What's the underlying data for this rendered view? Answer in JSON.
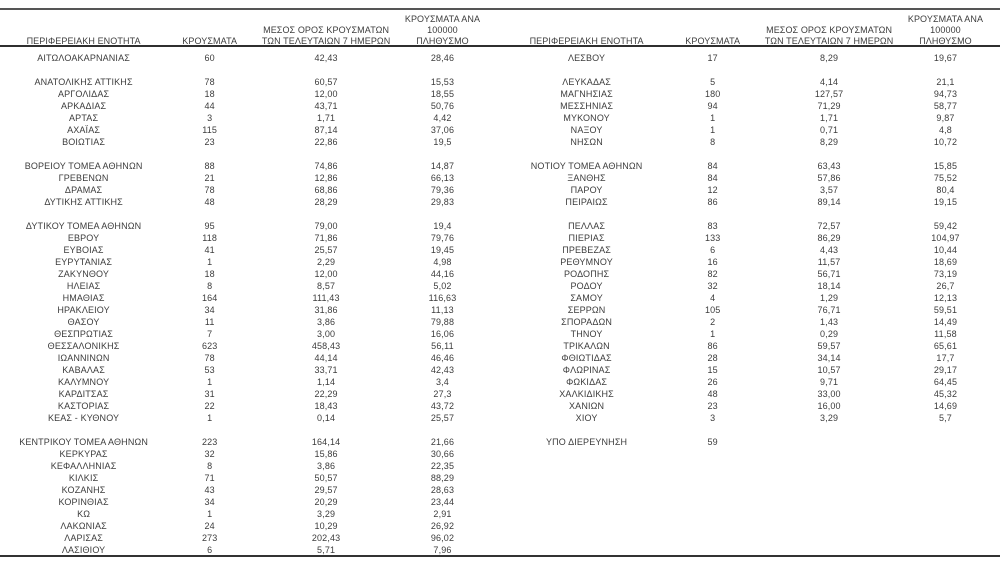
{
  "colors": {
    "text": "#3c3c3c",
    "rule": "#3a3a3a",
    "background": "#ffffff"
  },
  "tables": [
    {
      "headers": [
        "ΠΕΡΙΦΕΡΕΙΑΚΗ ΕΝΟΤΗΤΑ",
        "ΚΡΟΥΣΜΑΤΑ",
        "ΜΕΣΟΣ ΟΡΟΣ ΚΡΟΥΣΜΑΤΩΝ\nΤΩΝ ΤΕΛΕΥΤΑΙΩΝ 7 ΗΜΕΡΩΝ",
        "ΚΡΟΥΣΜΑΤΑ ΑΝΑ 100000\nΠΛΗΘΥΣΜΟ"
      ],
      "rows": [
        [
          "ΑΙΤΩΛΟΑΚΑΡΝΑΝΙΑΣ",
          "60",
          "42,43",
          "28,46"
        ],
        null,
        [
          "ΑΝΑΤΟΛΙΚΗΣ ΑΤΤΙΚΗΣ",
          "78",
          "60,57",
          "15,53"
        ],
        [
          "ΑΡΓΟΛΙΔΑΣ",
          "18",
          "12,00",
          "18,55"
        ],
        [
          "ΑΡΚΑΔΙΑΣ",
          "44",
          "43,71",
          "50,76"
        ],
        [
          "ΑΡΤΑΣ",
          "3",
          "1,71",
          "4,42"
        ],
        [
          "ΑΧΑΪΑΣ",
          "115",
          "87,14",
          "37,06"
        ],
        [
          "ΒΟΙΩΤΙΑΣ",
          "23",
          "22,86",
          "19,5"
        ],
        null,
        [
          "ΒΟΡΕΙΟΥ ΤΟΜΕΑ ΑΘΗΝΩΝ",
          "88",
          "74,86",
          "14,87"
        ],
        [
          "ΓΡΕΒΕΝΩΝ",
          "21",
          "12,86",
          "66,13"
        ],
        [
          "ΔΡΑΜΑΣ",
          "78",
          "68,86",
          "79,36"
        ],
        [
          "ΔΥΤΙΚΗΣ ΑΤΤΙΚΗΣ",
          "48",
          "28,29",
          "29,83"
        ],
        null,
        [
          "ΔΥΤΙΚΟΥ ΤΟΜΕΑ ΑΘΗΝΩΝ",
          "95",
          "79,00",
          "19,4"
        ],
        [
          "ΕΒΡΟΥ",
          "118",
          "71,86",
          "79,76"
        ],
        [
          "ΕΥΒΟΙΑΣ",
          "41",
          "25,57",
          "19,45"
        ],
        [
          "ΕΥΡΥΤΑΝΙΑΣ",
          "1",
          "2,29",
          "4,98"
        ],
        [
          "ΖΑΚΥΝΘΟΥ",
          "18",
          "12,00",
          "44,16"
        ],
        [
          "ΗΛΕΙΑΣ",
          "8",
          "8,57",
          "5,02"
        ],
        [
          "ΗΜΑΘΙΑΣ",
          "164",
          "111,43",
          "116,63"
        ],
        [
          "ΗΡΑΚΛΕΙΟΥ",
          "34",
          "31,86",
          "11,13"
        ],
        [
          "ΘΑΣΟΥ",
          "11",
          "3,86",
          "79,88"
        ],
        [
          "ΘΕΣΠΡΩΤΙΑΣ",
          "7",
          "3,00",
          "16,06"
        ],
        [
          "ΘΕΣΣΑΛΟΝΙΚΗΣ",
          "623",
          "458,43",
          "56,11"
        ],
        [
          "ΙΩΑΝΝΙΝΩΝ",
          "78",
          "44,14",
          "46,46"
        ],
        [
          "ΚΑΒΑΛΑΣ",
          "53",
          "33,71",
          "42,43"
        ],
        [
          "ΚΑΛΥΜΝΟΥ",
          "1",
          "1,14",
          "3,4"
        ],
        [
          "ΚΑΡΔΙΤΣΑΣ",
          "31",
          "22,29",
          "27,3"
        ],
        [
          "ΚΑΣΤΟΡΙΑΣ",
          "22",
          "18,43",
          "43,72"
        ],
        [
          "ΚΕΑΣ - ΚΥΘΝΟΥ",
          "1",
          "0,14",
          "25,57"
        ],
        null,
        [
          "ΚΕΝΤΡΙΚΟΥ ΤΟΜΕΑ ΑΘΗΝΩΝ",
          "223",
          "164,14",
          "21,66"
        ],
        [
          "ΚΕΡΚΥΡΑΣ",
          "32",
          "15,86",
          "30,66"
        ],
        [
          "ΚΕΦΑΛΛΗΝΙΑΣ",
          "8",
          "3,86",
          "22,35"
        ],
        [
          "ΚΙΛΚΙΣ",
          "71",
          "50,57",
          "88,29"
        ],
        [
          "ΚΟΖΑΝΗΣ",
          "43",
          "29,57",
          "28,63"
        ],
        [
          "ΚΟΡΙΝΘΙΑΣ",
          "34",
          "20,29",
          "23,44"
        ],
        [
          "ΚΩ",
          "1",
          "3,29",
          "2,91"
        ],
        [
          "ΛΑΚΩΝΙΑΣ",
          "24",
          "10,29",
          "26,92"
        ],
        [
          "ΛΑΡΙΣΑΣ",
          "273",
          "202,43",
          "96,02"
        ],
        [
          "ΛΑΣΙΘΙΟΥ",
          "6",
          "5,71",
          "7,96"
        ]
      ]
    },
    {
      "headers": [
        "ΠΕΡΙΦΕΡΕΙΑΚΗ ΕΝΟΤΗΤΑ",
        "ΚΡΟΥΣΜΑΤΑ",
        "ΜΕΣΟΣ ΟΡΟΣ ΚΡΟΥΣΜΑΤΩΝ\nΤΩΝ ΤΕΛΕΥΤΑΙΩΝ 7 ΗΜΕΡΩΝ",
        "ΚΡΟΥΣΜΑΤΑ ΑΝΑ 100000\nΠΛΗΘΥΣΜΟ"
      ],
      "rows": [
        [
          "ΛΕΣΒΟΥ",
          "17",
          "8,29",
          "19,67"
        ],
        null,
        [
          "ΛΕΥΚΑΔΑΣ",
          "5",
          "4,14",
          "21,1"
        ],
        [
          "ΜΑΓΝΗΣΙΑΣ",
          "180",
          "127,57",
          "94,73"
        ],
        [
          "ΜΕΣΣΗΝΙΑΣ",
          "94",
          "71,29",
          "58,77"
        ],
        [
          "ΜΥΚΟΝΟΥ",
          "1",
          "1,71",
          "9,87"
        ],
        [
          "ΝΑΞΟΥ",
          "1",
          "0,71",
          "4,8"
        ],
        [
          "ΝΗΣΩΝ",
          "8",
          "8,29",
          "10,72"
        ],
        null,
        [
          "ΝΟΤΙΟΥ ΤΟΜΕΑ ΑΘΗΝΩΝ",
          "84",
          "63,43",
          "15,85"
        ],
        [
          "ΞΑΝΘΗΣ",
          "84",
          "57,86",
          "75,52"
        ],
        [
          "ΠΑΡΟΥ",
          "12",
          "3,57",
          "80,4"
        ],
        [
          "ΠΕΙΡΑΙΩΣ",
          "86",
          "89,14",
          "19,15"
        ],
        null,
        [
          "ΠΕΛΛΑΣ",
          "83",
          "72,57",
          "59,42"
        ],
        [
          "ΠΙΕΡΙΑΣ",
          "133",
          "86,29",
          "104,97"
        ],
        [
          "ΠΡΕΒΕΖΑΣ",
          "6",
          "4,43",
          "10,44"
        ],
        [
          "ΡΕΘΥΜΝΟΥ",
          "16",
          "11,57",
          "18,69"
        ],
        [
          "ΡΟΔΟΠΗΣ",
          "82",
          "56,71",
          "73,19"
        ],
        [
          "ΡΟΔΟΥ",
          "32",
          "18,14",
          "26,7"
        ],
        [
          "ΣΑΜΟΥ",
          "4",
          "1,29",
          "12,13"
        ],
        [
          "ΣΕΡΡΩΝ",
          "105",
          "76,71",
          "59,51"
        ],
        [
          "ΣΠΟΡΑΔΩΝ",
          "2",
          "1,43",
          "14,49"
        ],
        [
          "ΤΗΝΟΥ",
          "1",
          "0,29",
          "11,58"
        ],
        [
          "ΤΡΙΚΑΛΩΝ",
          "86",
          "59,57",
          "65,61"
        ],
        [
          "ΦΘΙΩΤΙΔΑΣ",
          "28",
          "34,14",
          "17,7"
        ],
        [
          "ΦΛΩΡΙΝΑΣ",
          "15",
          "10,57",
          "29,17"
        ],
        [
          "ΦΩΚΙΔΑΣ",
          "26",
          "9,71",
          "64,45"
        ],
        [
          "ΧΑΛΚΙΔΙΚΗΣ",
          "48",
          "33,00",
          "45,32"
        ],
        [
          "ΧΑΝΙΩΝ",
          "23",
          "16,00",
          "14,69"
        ],
        [
          "ΧΙΟΥ",
          "3",
          "3,29",
          "5,7"
        ],
        null,
        [
          "ΥΠΟ ΔΙΕΡΕΥΝΗΣΗ",
          "59",
          "",
          ""
        ]
      ]
    }
  ]
}
